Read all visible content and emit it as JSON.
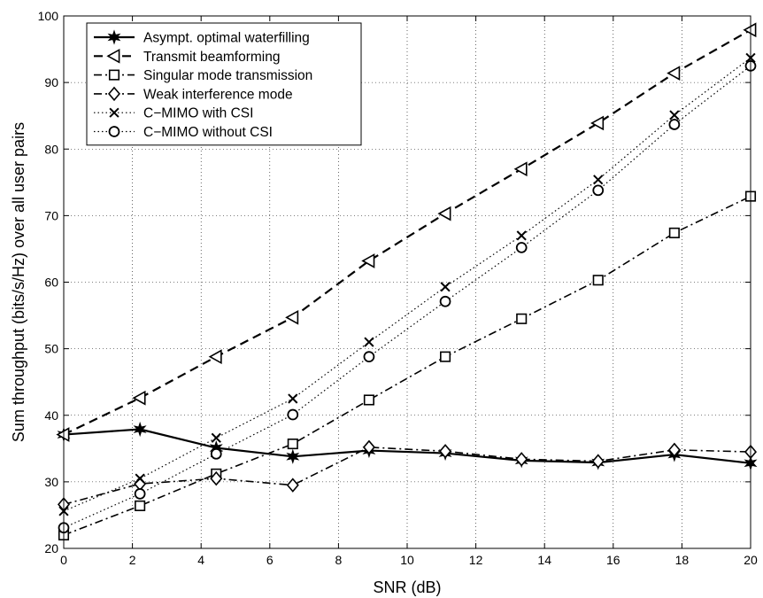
{
  "chart_data": {
    "type": "line",
    "title": "",
    "xlabel": "SNR (dB)",
    "ylabel": "Sum throughput (bits/s/Hz) over all user pairs",
    "xlim": [
      0,
      20
    ],
    "ylim": [
      20,
      100
    ],
    "xticks": [
      0,
      2,
      4,
      6,
      8,
      10,
      12,
      14,
      16,
      18,
      20
    ],
    "yticks": [
      20,
      30,
      40,
      50,
      60,
      70,
      80,
      90,
      100
    ],
    "grid": true,
    "legend_position": "top-left",
    "x": [
      0,
      2.22,
      4.44,
      6.67,
      8.89,
      11.11,
      13.33,
      15.56,
      17.78,
      20
    ],
    "series": [
      {
        "name": "Asympt. optimal waterfilling",
        "line": "solid",
        "marker": "star",
        "color": "#000000",
        "values": [
          37.1,
          37.9,
          35.1,
          33.8,
          34.7,
          34.3,
          33.2,
          32.9,
          34.1,
          32.8
        ]
      },
      {
        "name": "Transmit beamforming",
        "line": "dashed",
        "marker": "triangle-left",
        "color": "#000000",
        "values": [
          37.1,
          42.6,
          48.8,
          54.7,
          63.2,
          70.3,
          77.0,
          83.9,
          91.4,
          97.9
        ]
      },
      {
        "name": "Singular mode transmission",
        "line": "dashdot",
        "marker": "square",
        "color": "#000000",
        "values": [
          22.0,
          26.4,
          31.2,
          35.7,
          42.3,
          48.8,
          54.5,
          60.3,
          67.4,
          72.9
        ]
      },
      {
        "name": "Weak interference mode",
        "line": "dashdot",
        "marker": "diamond",
        "color": "#000000",
        "values": [
          26.6,
          29.7,
          30.5,
          29.5,
          35.2,
          34.6,
          33.4,
          33.1,
          34.8,
          34.5
        ]
      },
      {
        "name": "C−MIMO with CSI",
        "line": "dotted",
        "marker": "x",
        "color": "#000000",
        "values": [
          25.6,
          30.5,
          36.6,
          42.5,
          51.0,
          59.3,
          67.0,
          75.4,
          85.1,
          93.7
        ]
      },
      {
        "name": "C−MIMO without CSI",
        "line": "dotted",
        "marker": "circle",
        "color": "#000000",
        "values": [
          23.1,
          28.2,
          34.2,
          40.1,
          48.8,
          57.1,
          65.2,
          73.8,
          83.7,
          92.5
        ]
      }
    ]
  }
}
